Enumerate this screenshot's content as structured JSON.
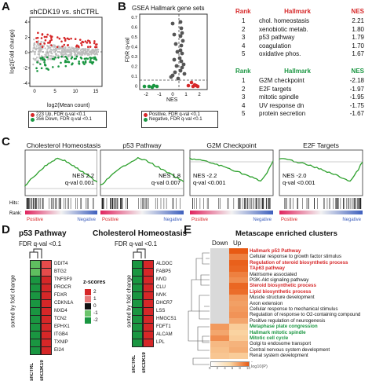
{
  "panels": {
    "A": {
      "label": "A",
      "title": "shCDK19 vs. shCTRL",
      "ylabel": "log2(Fold change)",
      "xlabel": "log2(Mean count)",
      "legend": [
        "223 Up, FDR q-val <0.1",
        "356 Down, FDR q-val <0.1"
      ],
      "legend_colors": [
        "#d62728",
        "#1a9641"
      ],
      "yticks": [
        "4",
        "2",
        "0",
        "-2",
        "-4"
      ],
      "xticks": [
        "0",
        "5",
        "10",
        "15"
      ]
    },
    "B": {
      "label": "B",
      "title": "GSEA Hallmark gene sets",
      "ylabel": "FDR q-val",
      "xlabel": "NES",
      "yticks": [
        "0.7",
        "0.6",
        "0.5",
        "0.4",
        "0.3",
        "0.2",
        "0.1",
        "0"
      ],
      "xticks": [
        "-2",
        "-1",
        "0",
        "1",
        "2"
      ],
      "legend": [
        "Positive, FDR q-val <0.1",
        "Negative, FDR q-val <0.1"
      ],
      "table_pos": {
        "headers": [
          "Rank",
          "Hallmark",
          "NES"
        ],
        "rows": [
          [
            "1",
            "chol. homeostasis",
            "2.21"
          ],
          [
            "2",
            "xenobiotic metab.",
            "1.80"
          ],
          [
            "3",
            "p53 pathway",
            "1.79"
          ],
          [
            "4",
            "coagulation",
            "1.70"
          ],
          [
            "5",
            "oxidative phos.",
            "1.67"
          ]
        ]
      },
      "table_neg": {
        "headers": [
          "Rank",
          "Hallmark",
          "NES"
        ],
        "rows": [
          [
            "1",
            "G2M checkpoint",
            "-2.18"
          ],
          [
            "2",
            "E2F targets",
            "-1.97"
          ],
          [
            "3",
            "mitotic spindle",
            "-1.95"
          ],
          [
            "4",
            "UV response dn",
            "-1.75"
          ],
          [
            "5",
            "protein secretion",
            "-1.67"
          ]
        ]
      }
    },
    "C": {
      "label": "C",
      "plots": [
        {
          "title": "Cholesterol Homeostasis",
          "nes": "NES 2.2",
          "q": "q-val 0.001"
        },
        {
          "title": "p53 Pathway",
          "nes": "NES 1.8",
          "q": "q-val 0.007"
        },
        {
          "title": "G2M Checkpoint",
          "nes": "NES -2.2",
          "q": "q-val <0.001"
        },
        {
          "title": "E2F Targets",
          "nes": "NES -2.0",
          "q": "q-val <0.001"
        }
      ],
      "hits": "Hits:",
      "rank": "Rank:",
      "positive": "Positive",
      "negative": "Negative"
    },
    "D": {
      "label": "D",
      "left_title": "p53 Pathway",
      "left_sub": "FDR q-val <0.1",
      "left_genes": [
        "DDIT4",
        "BTG2",
        "TNFSF9",
        "PROCR",
        "FDXR",
        "CDKN1A",
        "MXD4",
        "TCN2",
        "EPHX1",
        "ITGB4",
        "TXNIP",
        "EI24"
      ],
      "right_title": "Cholesterol Homeostasis",
      "right_sub": "FDR q-val <0.1",
      "right_genes": [
        "ALDOC",
        "FABP5",
        "MVD",
        "CLU",
        "MVK",
        "DHCR7",
        "LSS",
        "HMGCS1",
        "FDFT1",
        "ALCAM",
        "LPL"
      ],
      "side_label": "sorted by fold change",
      "cols": [
        "shCTRL",
        "shCDK19"
      ],
      "zscore_title": "z-scores",
      "zscore_ticks": [
        "2",
        "1",
        "0",
        "-1",
        "-2"
      ]
    },
    "E": {
      "label": "E",
      "title": "Metascape enriched clusters",
      "cols": [
        "Down",
        "Up"
      ],
      "terms": [
        {
          "text": "Hallmark p53 Pathway",
          "color": "red",
          "bold": true
        },
        {
          "text": "Cellular response to growth factor stimulus",
          "color": "black",
          "bold": false
        },
        {
          "text": "Regulation of steroid biosynthetic process",
          "color": "red",
          "bold": true
        },
        {
          "text": "TAp63 pathway",
          "color": "red",
          "bold": true
        },
        {
          "text": "Matrisome associated",
          "color": "black",
          "bold": false
        },
        {
          "text": "PI3K-Akt signaling pathway",
          "color": "black",
          "bold": false
        },
        {
          "text": "Steroid biosynthetic process",
          "color": "red",
          "bold": true
        },
        {
          "text": "Lipid biosynthetic process",
          "color": "red",
          "bold": true
        },
        {
          "text": "Muscle structure development",
          "color": "black",
          "bold": false
        },
        {
          "text": "Axon extension",
          "color": "black",
          "bold": false
        },
        {
          "text": "Cellular response to mechanical stimulus",
          "color": "black",
          "bold": false
        },
        {
          "text": "Regulation of response to O2-containing compound",
          "color": "black",
          "bold": false
        },
        {
          "text": "Positive regulation of neurogenesis",
          "color": "black",
          "bold": false
        },
        {
          "text": "Metaphase plate congression",
          "color": "green",
          "bold": true
        },
        {
          "text": "Hallmark mitotic spindle",
          "color": "green",
          "bold": true
        },
        {
          "text": "Mitotic cell cycle",
          "color": "green",
          "bold": true
        },
        {
          "text": "Golgi to endosome transport",
          "color": "black",
          "bold": false
        },
        {
          "text": "Central nervous system development",
          "color": "black",
          "bold": false
        },
        {
          "text": "Renal system development",
          "color": "black",
          "bold": false
        }
      ],
      "scale_label": "-log10(P)",
      "scale_ticks": [
        "0",
        "2",
        "4",
        "6",
        "8",
        "10"
      ]
    }
  },
  "colors": {
    "red": "#d62728",
    "green": "#1a9641",
    "orange_dark": "#e8651a",
    "orange_light": "#fbd9a8",
    "grey": "#bdbdbd"
  }
}
